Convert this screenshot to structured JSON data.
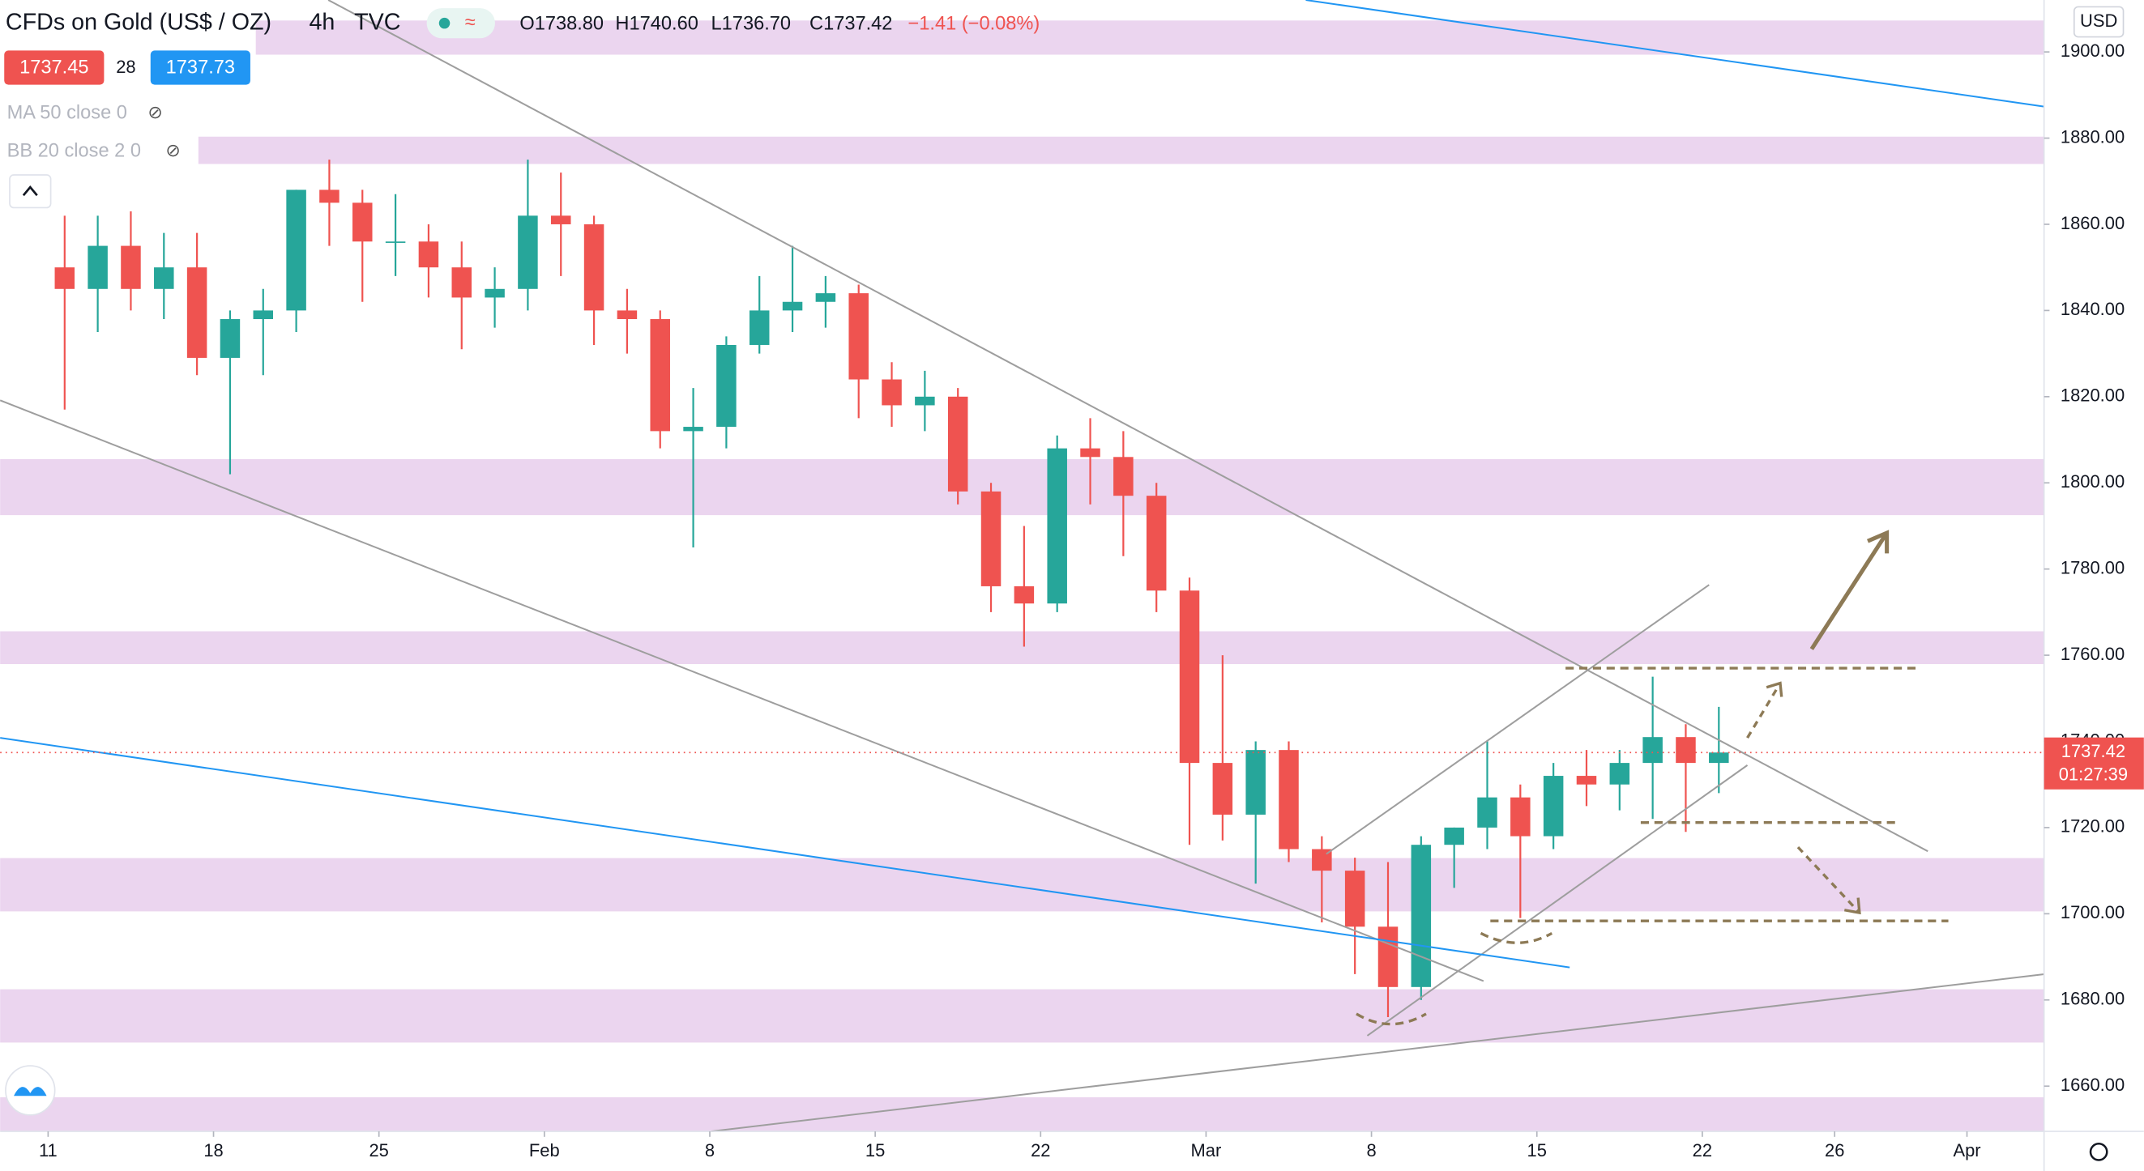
{
  "header": {
    "symbol": "CFDs on Gold (US$ / OZ)",
    "interval": "4h",
    "source": "TVC",
    "ohlc": [
      "O1738.80",
      "H1740.60",
      "L1736.70",
      "C1737.42"
    ],
    "change": "−1.41 (−0.08%)",
    "bid": "1737.45",
    "spread": "28",
    "ask": "1737.73",
    "indicators": [
      "MA 50 close 0",
      "BB 20 close 2 0"
    ]
  },
  "chart_data": {
    "type": "candlestick",
    "currency": "USD",
    "categories": [
      "Jan 11",
      "Jan 12",
      "Jan 13",
      "Jan 14",
      "Jan 15",
      "Jan 18",
      "Jan 19",
      "Jan 20",
      "Jan 21",
      "Jan 22",
      "Jan 25",
      "Jan 26",
      "Jan 27",
      "Jan 28",
      "Jan 29",
      "Feb 1",
      "Feb 2",
      "Feb 3",
      "Feb 4",
      "Feb 5",
      "Feb 8",
      "Feb 9",
      "Feb 10",
      "Feb 11",
      "Feb 12",
      "Feb 15",
      "Feb 16",
      "Feb 17",
      "Feb 18",
      "Feb 19",
      "Feb 22",
      "Feb 23",
      "Feb 24",
      "Feb 25",
      "Feb 26",
      "Mar 1",
      "Mar 2",
      "Mar 3",
      "Mar 4",
      "Mar 5",
      "Mar 8",
      "Mar 9",
      "Mar 10",
      "Mar 11",
      "Mar 12",
      "Mar 15",
      "Mar 16",
      "Mar 17",
      "Mar 18",
      "Mar 19",
      "Mar 22"
    ],
    "open": [
      1850,
      1845,
      1855,
      1845,
      1850,
      1829,
      1838,
      1840,
      1868,
      1865,
      1856,
      1856,
      1850,
      1843,
      1845,
      1862,
      1860,
      1840,
      1838,
      1812,
      1813,
      1832,
      1840,
      1842,
      1844,
      1824,
      1818,
      1820,
      1798,
      1776,
      1772,
      1808,
      1806,
      1797,
      1775,
      1735,
      1723,
      1738,
      1715,
      1710,
      1697,
      1683,
      1716,
      1720,
      1727,
      1718,
      1732,
      1730,
      1735,
      1741,
      1735
    ],
    "high": [
      1862,
      1862,
      1863,
      1858,
      1858,
      1840,
      1845,
      1868,
      1875,
      1868,
      1867,
      1860,
      1856,
      1850,
      1875,
      1872,
      1862,
      1845,
      1840,
      1822,
      1834,
      1848,
      1855,
      1848,
      1846,
      1828,
      1826,
      1822,
      1800,
      1790,
      1811,
      1815,
      1812,
      1800,
      1778,
      1760,
      1740,
      1740,
      1718,
      1713,
      1712,
      1718,
      1720,
      1740,
      1730,
      1735,
      1738,
      1738,
      1755,
      1744,
      1748
    ],
    "low": [
      1817,
      1835,
      1840,
      1838,
      1825,
      1802,
      1825,
      1835,
      1855,
      1842,
      1848,
      1843,
      1831,
      1836,
      1840,
      1848,
      1832,
      1830,
      1808,
      1785,
      1808,
      1830,
      1835,
      1836,
      1815,
      1813,
      1812,
      1795,
      1770,
      1762,
      1770,
      1795,
      1783,
      1770,
      1716,
      1717,
      1707,
      1712,
      1698,
      1686,
      1676,
      1680,
      1706,
      1715,
      1699,
      1715,
      1725,
      1724,
      1722,
      1719,
      1728
    ],
    "close": [
      1845,
      1855,
      1845,
      1850,
      1829,
      1838,
      1840,
      1868,
      1865,
      1856,
      1856,
      1850,
      1843,
      1845,
      1862,
      1860,
      1840,
      1838,
      1812,
      1813,
      1832,
      1840,
      1842,
      1844,
      1824,
      1818,
      1820,
      1798,
      1776,
      1772,
      1808,
      1806,
      1797,
      1775,
      1735,
      1723,
      1738,
      1715,
      1710,
      1697,
      1683,
      1716,
      1720,
      1727,
      1718,
      1732,
      1730,
      1735,
      1741,
      1735,
      1737.42
    ],
    "up_color": "#26a69a",
    "down_color": "#ef5350",
    "last_price": 1737.42,
    "countdown": "01:27:39",
    "xlim": [
      -1.45,
      60.33
    ],
    "ylim": [
      1649.5,
      1912.05
    ],
    "xticks": [
      {
        "value": 0,
        "label": "11"
      },
      {
        "value": 5,
        "label": "18"
      },
      {
        "value": 10,
        "label": "25"
      },
      {
        "value": 15,
        "label": "Feb"
      },
      {
        "value": 20,
        "label": "8"
      },
      {
        "value": 25,
        "label": "15"
      },
      {
        "value": 30,
        "label": "22"
      },
      {
        "value": 35,
        "label": "Mar"
      },
      {
        "value": 40,
        "label": "8"
      },
      {
        "value": 45,
        "label": "15"
      },
      {
        "value": 50,
        "label": "22"
      },
      {
        "value": 54,
        "label": "26"
      },
      {
        "value": 58,
        "label": "Apr"
      }
    ],
    "yticks": [
      {
        "value": 1660,
        "label": "1660.00"
      },
      {
        "value": 1680,
        "label": "1680.00"
      },
      {
        "value": 1700,
        "label": "1700.00"
      },
      {
        "value": 1720,
        "label": "1720.00"
      },
      {
        "value": 1740,
        "label": "1740.00"
      },
      {
        "value": 1760,
        "label": "1760.00"
      },
      {
        "value": 1780,
        "label": "1780.00"
      },
      {
        "value": 1800,
        "label": "1800.00"
      },
      {
        "value": 1820,
        "label": "1820.00"
      },
      {
        "value": 1840,
        "label": "1840.00"
      },
      {
        "value": 1860,
        "label": "1860.00"
      },
      {
        "value": 1880,
        "label": "1880.00"
      },
      {
        "value": 1900,
        "label": "1900.00"
      }
    ]
  }
}
